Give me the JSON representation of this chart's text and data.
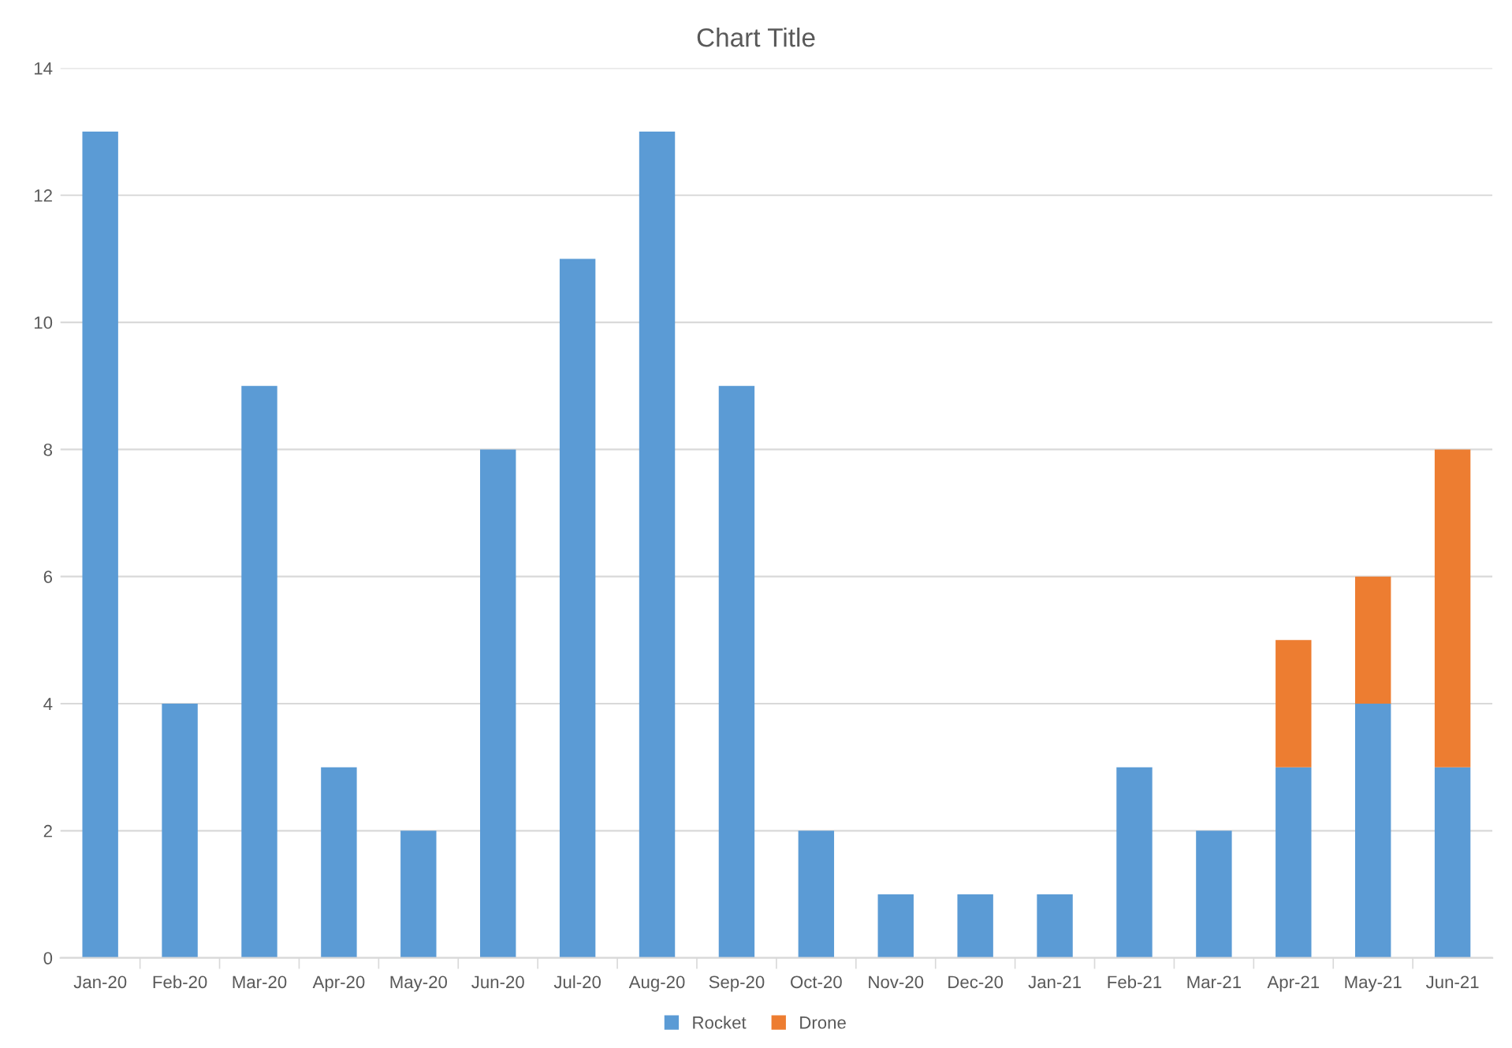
{
  "chart_data": {
    "type": "bar",
    "title": "Chart Title",
    "stacked": true,
    "categories": [
      "Jan-20",
      "Feb-20",
      "Mar-20",
      "Apr-20",
      "May-20",
      "Jun-20",
      "Jul-20",
      "Aug-20",
      "Sep-20",
      "Oct-20",
      "Nov-20",
      "Dec-20",
      "Jan-21",
      "Feb-21",
      "Mar-21",
      "Apr-21",
      "May-21",
      "Jun-21"
    ],
    "series": [
      {
        "name": "Rocket",
        "color": "#5b9bd5",
        "values": [
          13,
          4,
          9,
          3,
          2,
          8,
          11,
          13,
          9,
          2,
          1,
          1,
          1,
          3,
          2,
          3,
          4,
          3
        ]
      },
      {
        "name": "Drone",
        "color": "#ed7d31",
        "values": [
          null,
          null,
          null,
          null,
          null,
          null,
          null,
          null,
          null,
          null,
          null,
          null,
          null,
          null,
          null,
          2,
          2,
          5
        ]
      }
    ],
    "ylim": [
      0,
      14
    ],
    "yticks": [
      0,
      2,
      4,
      6,
      8,
      10,
      12,
      14
    ],
    "grid": "y",
    "legend": "bottom"
  }
}
